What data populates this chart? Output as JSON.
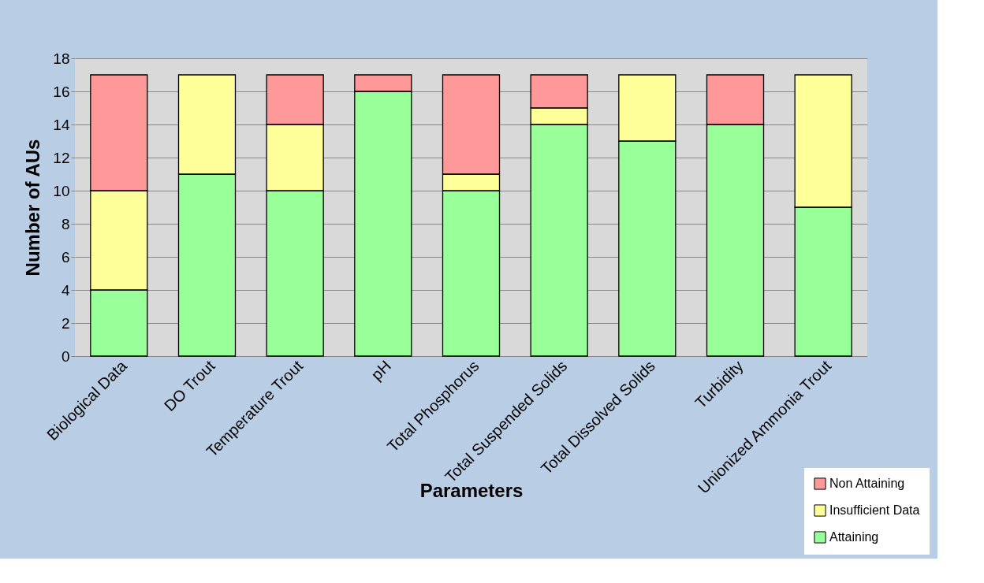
{
  "chart_data": {
    "type": "bar",
    "stacked": true,
    "xlabel": "Parameters",
    "ylabel": "Number of AUs",
    "categories": [
      "Biological Data",
      "DO Trout",
      "Temperature Trout",
      "pH",
      "Total Phosphorus",
      "Total Suspended Solids",
      "Total Dissolved Solids",
      "Turbidity",
      "Unionized Ammonia Trout"
    ],
    "series": [
      {
        "name": "Attaining",
        "color": "#99ff99",
        "values": [
          4,
          11,
          10,
          16,
          10,
          14,
          13,
          14,
          9
        ]
      },
      {
        "name": "Insufficient Data",
        "color": "#ffff99",
        "values": [
          6,
          6,
          4,
          0,
          1,
          1,
          4,
          0,
          8
        ]
      },
      {
        "name": "Non Attaining",
        "color": "#ff9999",
        "values": [
          7,
          0,
          3,
          1,
          6,
          2,
          0,
          3,
          0
        ]
      }
    ],
    "ylim": [
      0,
      18
    ],
    "yticks": [
      0,
      2,
      4,
      6,
      8,
      10,
      12,
      14,
      16,
      18
    ],
    "grid": "y",
    "legend": "bottom right"
  }
}
